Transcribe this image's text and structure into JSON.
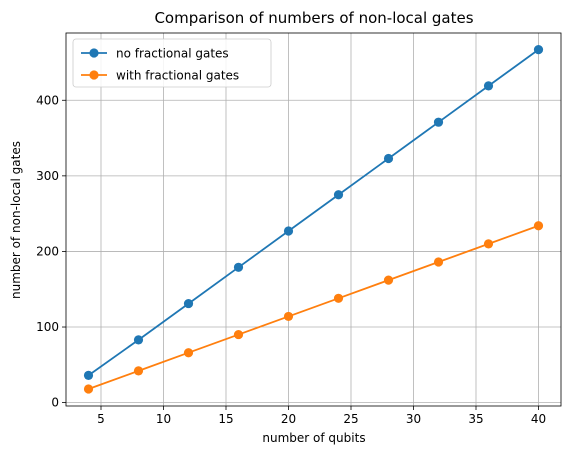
{
  "chart_data": {
    "type": "line",
    "title": "Comparison of numbers of non-local gates",
    "xlabel": "number of qubits",
    "ylabel": "number of non-local gates",
    "x": [
      4,
      8,
      12,
      16,
      20,
      24,
      28,
      32,
      36,
      40
    ],
    "series": [
      {
        "name": "no fractional gates",
        "color": "#1f77b4",
        "values": [
          36,
          83,
          131,
          179,
          227,
          275,
          323,
          371,
          419,
          467
        ]
      },
      {
        "name": "with fractional gates",
        "color": "#ff7f0e",
        "values": [
          18,
          42,
          66,
          90,
          114,
          138,
          162,
          186,
          210,
          234
        ]
      }
    ],
    "xlim": [
      2.2,
      41.8
    ],
    "ylim": [
      -4.5,
      489
    ],
    "xticks": [
      5,
      10,
      15,
      20,
      25,
      30,
      35,
      40
    ],
    "yticks": [
      0,
      100,
      200,
      300,
      400
    ],
    "grid": true,
    "legend_position": "upper-left"
  }
}
